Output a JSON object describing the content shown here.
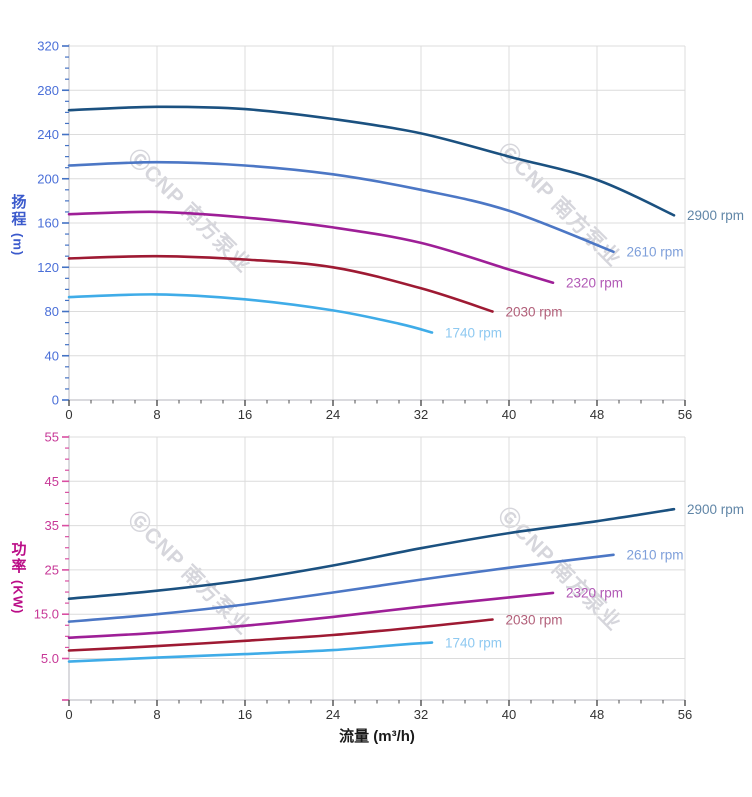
{
  "x_axis": {
    "title": "流量 (m³/h)",
    "tick_values": [
      0,
      8,
      16,
      24,
      32,
      40,
      48,
      56
    ],
    "tick_labels": [
      "0",
      "8",
      "16",
      "24",
      "32",
      "40",
      "48",
      "56"
    ],
    "minor_step": 2,
    "range": [
      0,
      56
    ],
    "tick_color": "#4d4d4d",
    "label_color": "#333333",
    "title_color": "#1a1a1a"
  },
  "watermark": {
    "text": "ⒼCNP 南方泵业",
    "color": "#d6d6dc"
  },
  "chart_data": [
    {
      "type": "line",
      "title": "",
      "ylabel": "扬程 (m)",
      "ylabel_cjk": "扬程",
      "ylabel_unit": "(m)",
      "xlabel": "流量 (m³/h)",
      "xlim": [
        0,
        56
      ],
      "ylim": [
        0,
        320
      ],
      "grid": true,
      "legend_position": "right-of-curve-end",
      "y_tick_values": [
        0,
        40,
        80,
        120,
        160,
        200,
        240,
        280,
        320
      ],
      "y_tick_labels": [
        "0",
        "40",
        "80",
        "120",
        "160",
        "200",
        "240",
        "280",
        "320"
      ],
      "y_minor_step": 10,
      "axis_tick_color": "#4472c4",
      "axis_label_color": "#4a6fd8",
      "axis_title_color": "#3b5acc",
      "series": [
        {
          "name": "2900 rpm",
          "color": "#1b5180",
          "label_color": "#6186a7",
          "x": [
            0,
            8,
            16,
            24,
            32,
            40,
            48,
            55
          ],
          "y": [
            262,
            265,
            263,
            254,
            241,
            220,
            199,
            167
          ]
        },
        {
          "name": "2610 rpm",
          "color": "#4c77c5",
          "label_color": "#7e9fda",
          "x": [
            0,
            8,
            16,
            24,
            32,
            40,
            49.5
          ],
          "y": [
            212,
            215,
            212,
            204,
            190,
            171,
            134
          ]
        },
        {
          "name": "2320 rpm",
          "color": "#9e1f97",
          "label_color": "#b158b5",
          "x": [
            0,
            8,
            16,
            24,
            32,
            40,
            44
          ],
          "y": [
            168,
            170,
            165,
            156,
            142,
            118,
            106
          ]
        },
        {
          "name": "2030 rpm",
          "color": "#9e1a33",
          "label_color": "#b2607a",
          "x": [
            0,
            8,
            16,
            24,
            32,
            38.5
          ],
          "y": [
            128,
            130,
            127,
            120,
            101,
            80
          ]
        },
        {
          "name": "1740 rpm",
          "color": "#3face8",
          "label_color": "#8ec9f1",
          "x": [
            0,
            8,
            16,
            24,
            30,
            33
          ],
          "y": [
            93,
            95.5,
            91,
            81,
            69,
            61
          ]
        }
      ]
    },
    {
      "type": "line",
      "title": "",
      "ylabel": "功率 (KW)",
      "ylabel_cjk": "功率",
      "ylabel_unit": "(KW)",
      "xlabel": "流量 (m³/h)",
      "xlim": [
        0,
        56
      ],
      "ylim": [
        -4.4,
        55
      ],
      "grid": true,
      "legend_position": "right-of-curve-end",
      "y_tick_values": [
        5,
        15,
        25,
        35,
        45,
        55
      ],
      "y_tick_labels": [
        "5.0",
        "15.0",
        "25",
        "35",
        "45",
        "55"
      ],
      "y_minor_step": 2.5,
      "axis_tick_color": "#d94fa2",
      "axis_label_color": "#c73897",
      "axis_title_color": "#bb0d87",
      "series": [
        {
          "name": "2900 rpm",
          "color": "#1b5180",
          "label_color": "#6186a7",
          "x": [
            0,
            8,
            16,
            24,
            32,
            40,
            48,
            55
          ],
          "y": [
            18.5,
            20.3,
            22.7,
            26,
            29.9,
            33.3,
            36,
            38.7
          ]
        },
        {
          "name": "2610 rpm",
          "color": "#4c77c5",
          "label_color": "#7e9fda",
          "x": [
            0,
            8,
            16,
            24,
            32,
            40,
            49.5
          ],
          "y": [
            13.3,
            15,
            17.2,
            19.9,
            22.8,
            25.5,
            28.4
          ]
        },
        {
          "name": "2320 rpm",
          "color": "#9e1f97",
          "label_color": "#b158b5",
          "x": [
            0,
            8,
            16,
            24,
            32,
            40,
            44
          ],
          "y": [
            9.7,
            10.8,
            12.4,
            14.4,
            16.7,
            18.8,
            19.8
          ]
        },
        {
          "name": "2030 rpm",
          "color": "#9e1a33",
          "label_color": "#b2607a",
          "x": [
            0,
            8,
            16,
            24,
            32,
            38.5
          ],
          "y": [
            6.8,
            7.8,
            9.0,
            10.3,
            12.1,
            13.8
          ]
        },
        {
          "name": "1740 rpm",
          "color": "#3face8",
          "label_color": "#8ec9f1",
          "x": [
            0,
            8,
            16,
            24,
            30,
            33
          ],
          "y": [
            4.3,
            5.2,
            6.0,
            6.9,
            8.1,
            8.6
          ]
        }
      ]
    }
  ]
}
